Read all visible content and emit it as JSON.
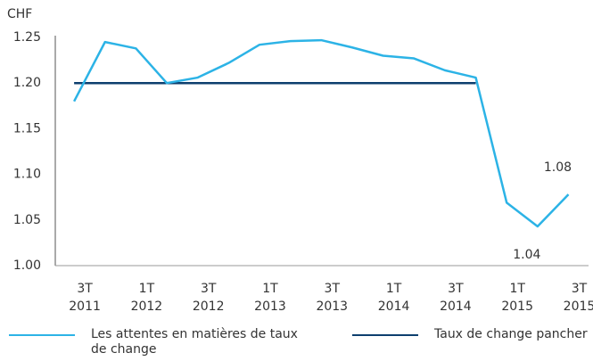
{
  "chart_data": {
    "type": "line",
    "y_label": "CHF",
    "categories": [
      "3T 2011",
      null,
      "1T 2012",
      null,
      "3T 2012",
      null,
      "1T 2013",
      null,
      "3T 2013",
      null,
      "1T 2014",
      null,
      "3T 2014",
      null,
      "1T 2015",
      null,
      "3T 2015"
    ],
    "series": [
      {
        "name": "Les attentes en matières de taux de change",
        "color": "#2cb3e6",
        "values": [
          1.18,
          1.245,
          1.238,
          1.2,
          1.206,
          1.222,
          1.242,
          1.246,
          1.247,
          1.239,
          1.23,
          1.227,
          1.214,
          1.206,
          1.069,
          1.043,
          1.078
        ],
        "value_labels": [
          null,
          null,
          null,
          null,
          null,
          null,
          null,
          null,
          null,
          null,
          null,
          null,
          null,
          null,
          null,
          "1.04",
          "1.08"
        ]
      },
      {
        "name": "Taux de change pancher",
        "color": "#0d3f6e",
        "values": [
          1.2,
          1.2,
          1.2,
          1.2,
          1.2,
          1.2,
          1.2,
          1.2,
          1.2,
          1.2,
          1.2,
          1.2,
          1.2,
          1.2,
          null,
          null,
          null
        ]
      }
    ],
    "ylim": [
      1.0,
      1.25
    ],
    "yticks": [
      {
        "value": 1.0,
        "label": "1.00"
      },
      1.05,
      {
        "value": 1.1,
        "label": "1.10"
      },
      1.15,
      {
        "value": 1.2,
        "label": "1.20"
      },
      1.25
    ],
    "grid": false
  }
}
